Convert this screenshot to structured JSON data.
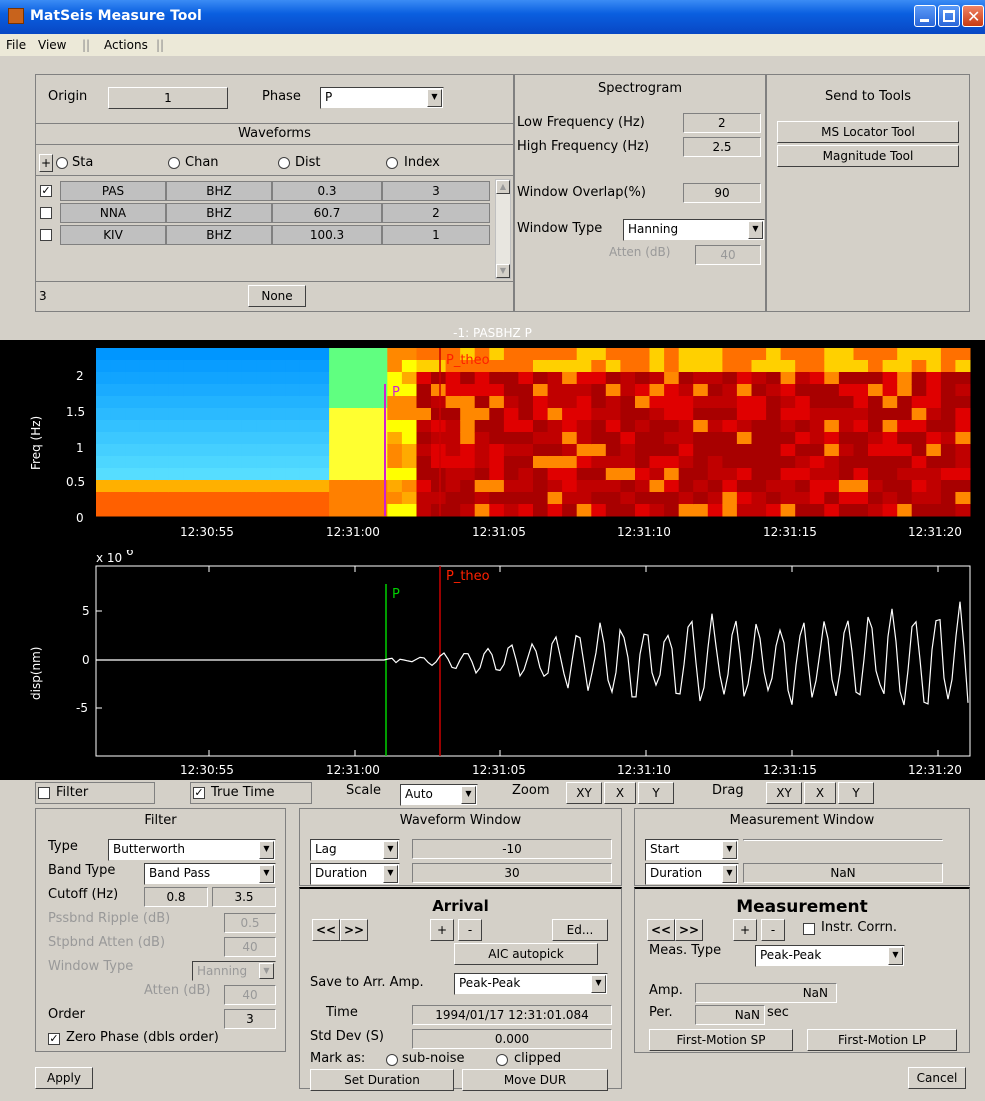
{
  "window": {
    "title": "MatSeis Measure Tool"
  },
  "menu": [
    "File",
    "View",
    "||",
    "Actions",
    "||"
  ],
  "origin": {
    "label": "Origin",
    "value": "1",
    "phase_label": "Phase",
    "phase_value": "P"
  },
  "waveforms": {
    "title": "Waveforms",
    "plus": "+",
    "sort_options": [
      "Sta",
      "Chan",
      "Dist",
      "Index"
    ],
    "rows": [
      {
        "checked": true,
        "sta": "PAS",
        "chan": "BHZ",
        "dist": "0.3",
        "index": "3"
      },
      {
        "checked": false,
        "sta": "NNA",
        "chan": "BHZ",
        "dist": "60.7",
        "index": "2"
      },
      {
        "checked": false,
        "sta": "KIV",
        "chan": "BHZ",
        "dist": "100.3",
        "index": "1"
      }
    ],
    "count": "3",
    "none_label": "None"
  },
  "spectrogram": {
    "title": "Spectrogram",
    "low_label": "Low Frequency (Hz)",
    "low": "2",
    "high_label": "High Frequency (Hz)",
    "high": "2.5",
    "overlap_label": "Window Overlap(%)",
    "overlap": "90",
    "wtype_label": "Window Type",
    "wtype": "Hanning",
    "atten_label": "Atten (dB)",
    "atten": "40"
  },
  "send": {
    "title": "Send to Tools",
    "locator": "MS Locator Tool",
    "magnitude": "Magnitude Tool"
  },
  "plot_title": "-1: PASBHZ P",
  "spec_plot": {
    "ylabel": "Freq (Hz)",
    "yticks": [
      "2",
      "1.5",
      "1",
      "0.5",
      "0"
    ],
    "xticks": [
      "12:30:55",
      "12:31:00",
      "12:31:05",
      "12:31:10",
      "12:31:15",
      "12:31:20"
    ],
    "pick": "P",
    "theo": "P_theo"
  },
  "wave_plot": {
    "ylabel": "disp(nm)",
    "exponent": "x 10",
    "exponent_power": "6",
    "yticks": [
      "5",
      "0",
      "-5"
    ],
    "xticks": [
      "12:30:55",
      "12:31:00",
      "12:31:05",
      "12:31:10",
      "12:31:15",
      "12:31:20"
    ],
    "pick": "P",
    "theo": "P_theo",
    "pick_color": "#00d000",
    "theo_color": "#d00000"
  },
  "controls": {
    "filter": "Filter",
    "true_time": "True Time",
    "scale": "Scale",
    "scale_value": "Auto",
    "zoom": "Zoom",
    "drag": "Drag",
    "xy": "XY",
    "x": "X",
    "y": "Y"
  },
  "filter": {
    "title": "Filter",
    "type_label": "Type",
    "type": "Butterworth",
    "band_label": "Band Type",
    "band": "Band Pass",
    "cutoff_label": "Cutoff (Hz)",
    "cutoff_lo": "0.8",
    "cutoff_hi": "3.5",
    "ripple_label": "Pssbnd Ripple (dB)",
    "ripple": "0.5",
    "stop_label": "Stpbnd Atten (dB)",
    "stop": "40",
    "wtype_label": "Window Type",
    "wtype": "Hanning",
    "atten_label": "Atten (dB)",
    "atten": "40",
    "order_label": "Order",
    "order": "3",
    "zero_phase": "Zero Phase (dbls order)",
    "apply": "Apply"
  },
  "waveform_window": {
    "title": "Waveform Window",
    "lag_label": "Lag",
    "lag": "-10",
    "dur_label": "Duration",
    "dur": "30"
  },
  "arrival": {
    "title": "Arrival",
    "prev": "<<",
    "next": ">>",
    "plus": "+",
    "minus": "-",
    "edit": "Ed...",
    "aic": "AIC autopick",
    "save_label": "Save to Arr. Amp.",
    "save_value": "Peak-Peak",
    "time_label": "Time",
    "time": "1994/01/17 12:31:01.084",
    "std_label": "Std Dev (S)",
    "std": "0.000",
    "mark_label": "Mark as:",
    "sub_noise": "sub-noise",
    "clipped": "clipped",
    "set_duration": "Set Duration",
    "move_dur": "Move DUR"
  },
  "measurement_window": {
    "title": "Measurement Window",
    "start_label": "Start",
    "start": "",
    "dur_label": "Duration",
    "dur": "NaN"
  },
  "measurement": {
    "title": "Measurement",
    "prev": "<<",
    "next": ">>",
    "plus": "+",
    "minus": "-",
    "instr": "Instr. Corrn.",
    "type_label": "Meas. Type",
    "type": "Peak-Peak",
    "amp_label": "Amp.",
    "amp": "NaN",
    "per_label": "Per.",
    "per": "NaN",
    "sec": "sec",
    "fm_sp": "First-Motion SP",
    "fm_lp": "First-Motion LP",
    "cancel": "Cancel"
  }
}
